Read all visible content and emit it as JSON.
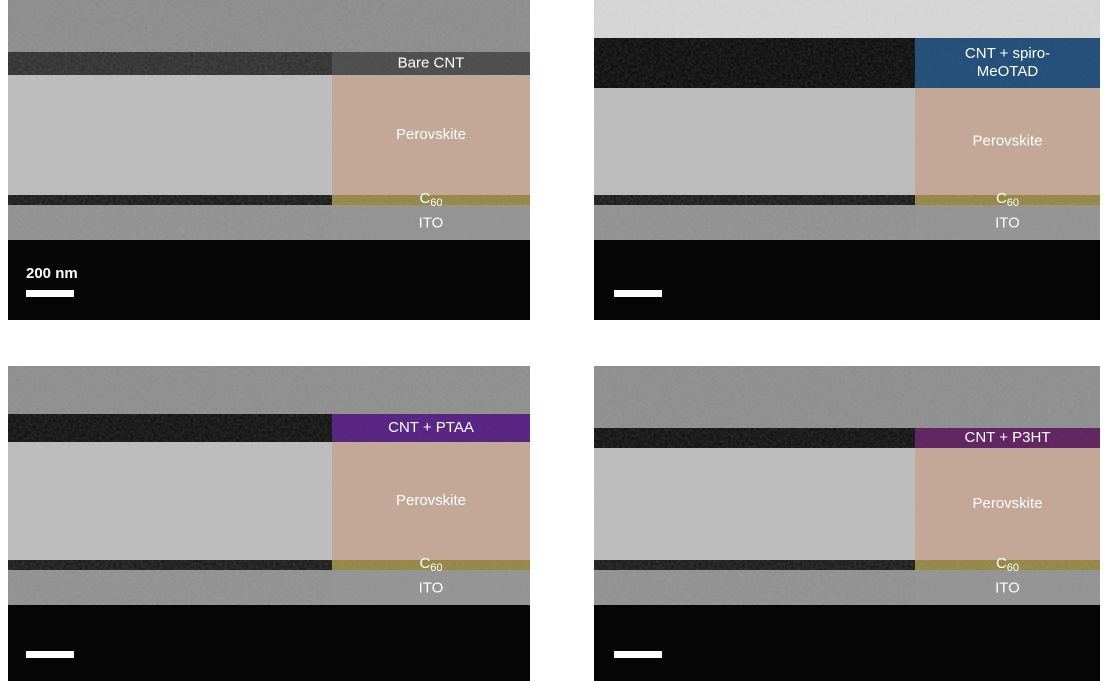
{
  "scale_bar_label": "200 nm",
  "panels": [
    {
      "htl": [
        "Bare CNT"
      ],
      "perovskite": "Perovskite",
      "c60": {
        "base": "C",
        "sub": "60"
      },
      "ito": "ITO"
    },
    {
      "htl": [
        "CNT + spiro-",
        "MeOTAD"
      ],
      "perovskite": "Perovskite",
      "c60": {
        "base": "C",
        "sub": "60"
      },
      "ito": "ITO"
    },
    {
      "htl": [
        "CNT + PTAA"
      ],
      "perovskite": "Perovskite",
      "c60": {
        "base": "C",
        "sub": "60"
      },
      "ito": "ITO"
    },
    {
      "htl": [
        "CNT + P3HT"
      ],
      "perovskite": "Perovskite",
      "c60": {
        "base": "C",
        "sub": "60"
      },
      "ito": "ITO"
    }
  ]
}
